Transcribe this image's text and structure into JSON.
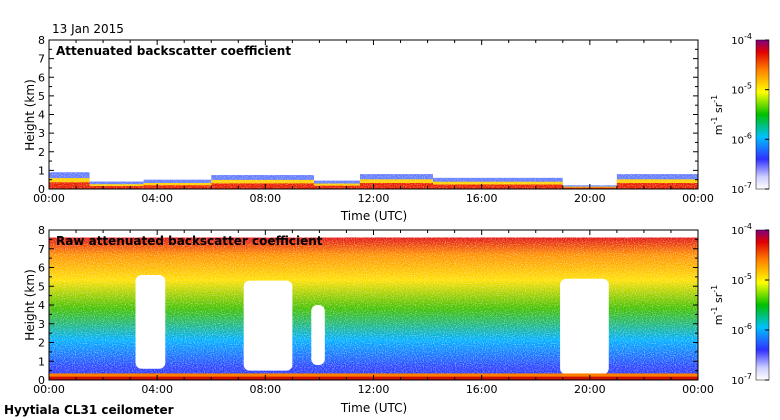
{
  "date_label": "13 Jan 2015",
  "footer_label": "Hyytiala CL31 ceilometer",
  "chart_data": [
    {
      "type": "heatmap",
      "title": "Attenuated backscatter coefficient",
      "xlabel": "Time (UTC)",
      "ylabel": "Height (km)",
      "xticks": [
        "00:00",
        "04:00",
        "08:00",
        "12:00",
        "16:00",
        "20:00",
        "00:00"
      ],
      "xlim_hours": [
        0,
        24
      ],
      "yticks": [
        0,
        1,
        2,
        3,
        4,
        5,
        6,
        7,
        8
      ],
      "ylim": [
        0,
        8
      ],
      "colorbar": {
        "label": "m⁻¹ sr⁻¹",
        "scale": "log",
        "range": [
          1e-07,
          0.0001
        ],
        "ticks": [
          {
            "base": "10",
            "exp": "-4"
          },
          {
            "base": "10",
            "exp": "-5"
          },
          {
            "base": "10",
            "exp": "-6"
          },
          {
            "base": "10",
            "exp": "-7"
          }
        ]
      },
      "layers": [
        {
          "start": 0.0,
          "end": 1.5,
          "top_km": 0.9
        },
        {
          "start": 1.5,
          "end": 3.5,
          "top_km": 0.4
        },
        {
          "start": 3.5,
          "end": 6.0,
          "top_km": 0.5
        },
        {
          "start": 6.0,
          "end": 9.8,
          "top_km": 0.75
        },
        {
          "start": 9.8,
          "end": 11.5,
          "top_km": 0.45
        },
        {
          "start": 11.5,
          "end": 14.2,
          "top_km": 0.8
        },
        {
          "start": 14.2,
          "end": 19.0,
          "top_km": 0.6
        },
        {
          "start": 19.0,
          "end": 21.0,
          "top_km": 0.2
        },
        {
          "start": 21.0,
          "end": 24.0,
          "top_km": 0.8
        }
      ]
    },
    {
      "type": "heatmap",
      "title": "Raw attenuated backscatter coefficient",
      "xlabel": "Time (UTC)",
      "ylabel": "Height (km)",
      "xticks": [
        "00:00",
        "04:00",
        "08:00",
        "12:00",
        "16:00",
        "20:00",
        "00:00"
      ],
      "xlim_hours": [
        0,
        24
      ],
      "yticks": [
        0,
        1,
        2,
        3,
        4,
        5,
        6,
        7,
        8
      ],
      "ylim": [
        0,
        8
      ],
      "colorbar": {
        "label": "m⁻¹ sr⁻¹",
        "scale": "log",
        "range": [
          1e-07,
          0.0001
        ],
        "ticks": [
          {
            "base": "10",
            "exp": "-4"
          },
          {
            "base": "10",
            "exp": "-5"
          },
          {
            "base": "10",
            "exp": "-6"
          },
          {
            "base": "10",
            "exp": "-7"
          }
        ]
      },
      "data_top_km": 7.6,
      "clear_regions": [
        {
          "start": 3.2,
          "end": 4.3,
          "bottom_km": 0.6,
          "top_km": 5.6
        },
        {
          "start": 7.2,
          "end": 9.0,
          "bottom_km": 0.5,
          "top_km": 5.3
        },
        {
          "start": 9.7,
          "end": 10.2,
          "bottom_km": 0.8,
          "top_km": 4.0
        },
        {
          "start": 18.9,
          "end": 20.7,
          "bottom_km": 0.3,
          "top_km": 5.4
        }
      ]
    }
  ]
}
